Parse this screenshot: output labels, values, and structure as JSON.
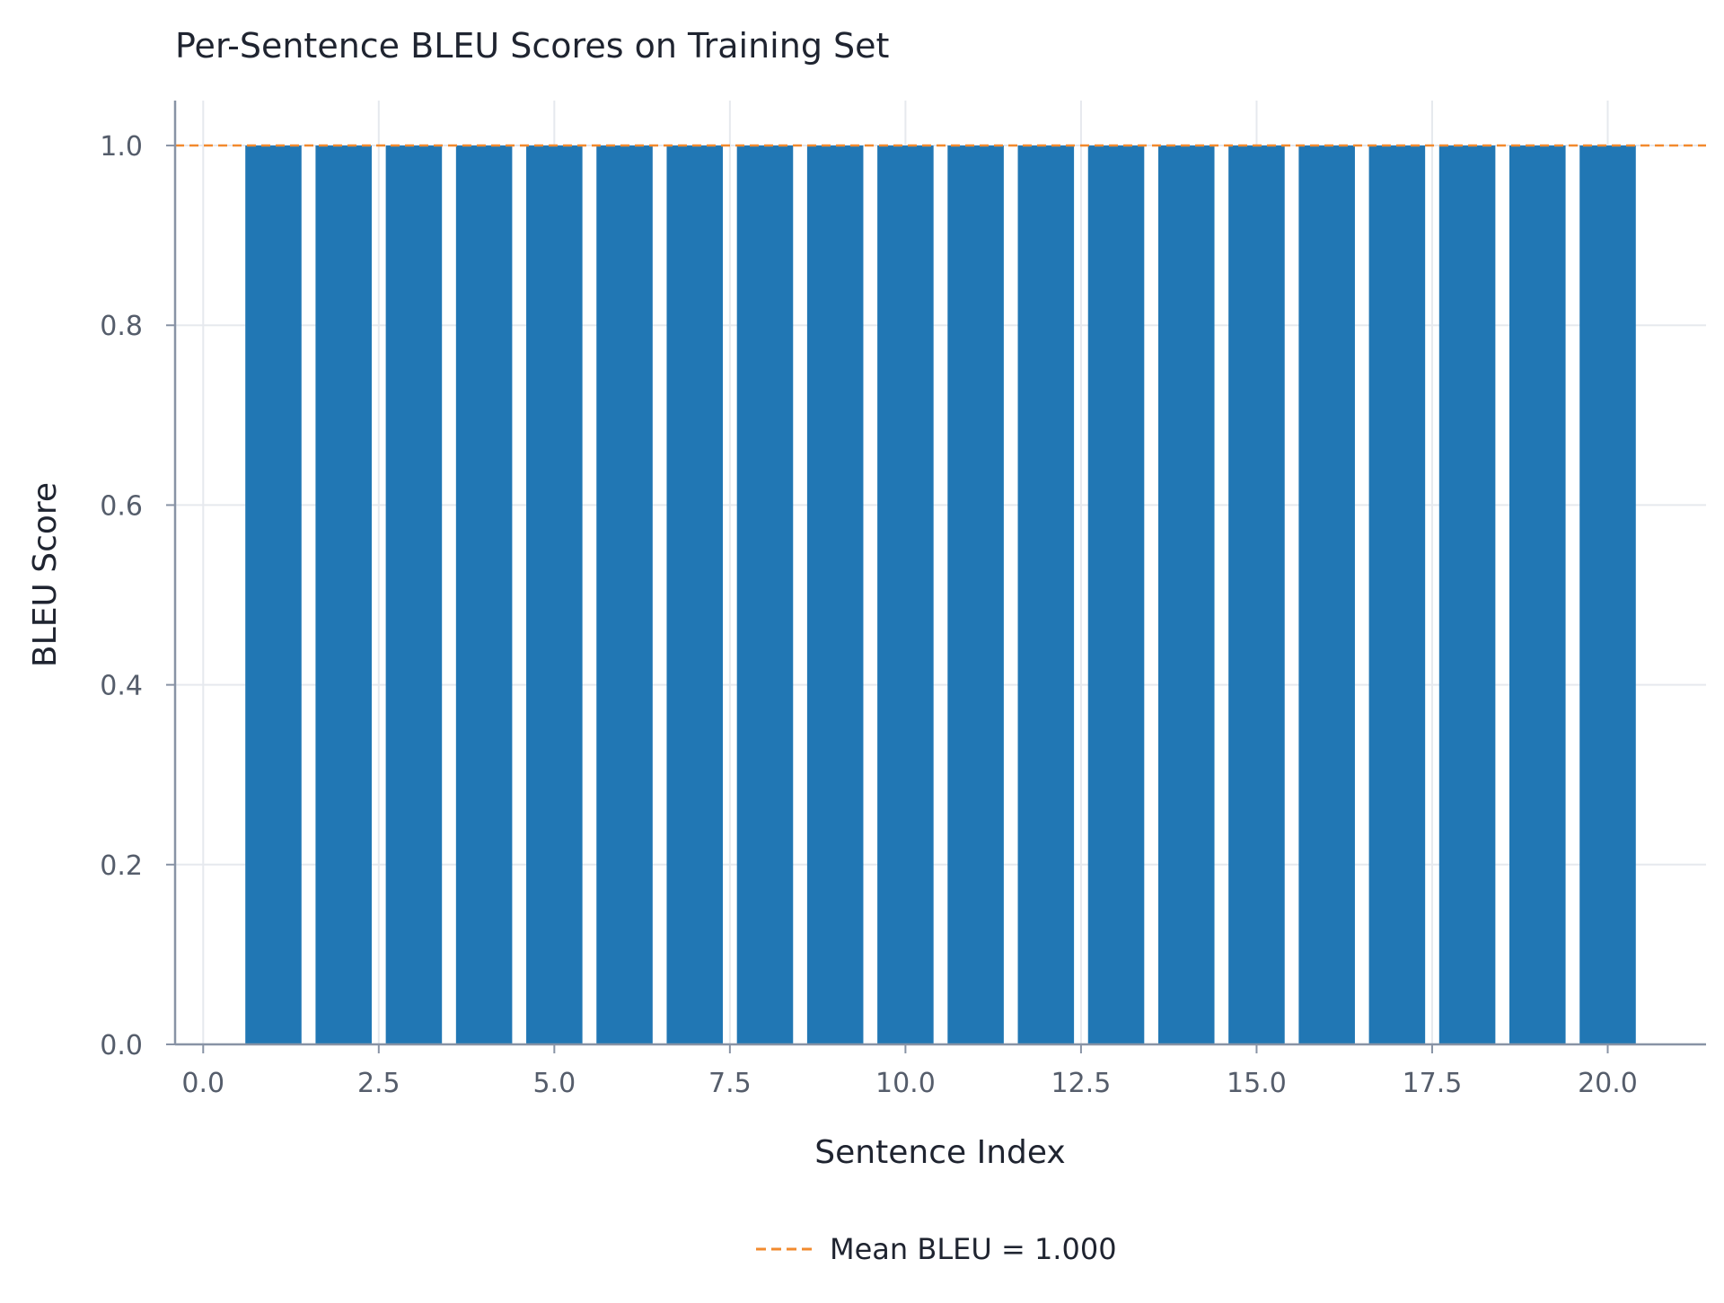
{
  "chart_data": {
    "type": "bar",
    "title": "Per-Sentence BLEU Scores on Training Set",
    "xlabel": "Sentence Index",
    "ylabel": "BLEU Score",
    "x": [
      1,
      2,
      3,
      4,
      5,
      6,
      7,
      8,
      9,
      10,
      11,
      12,
      13,
      14,
      15,
      16,
      17,
      18,
      19,
      20
    ],
    "values": [
      1.0,
      1.0,
      1.0,
      1.0,
      1.0,
      1.0,
      1.0,
      1.0,
      1.0,
      1.0,
      1.0,
      1.0,
      1.0,
      1.0,
      1.0,
      1.0,
      1.0,
      1.0,
      1.0,
      1.0
    ],
    "xlim": [
      -0.4,
      21.4
    ],
    "ylim": [
      0,
      1.05
    ],
    "x_ticks": [
      0.0,
      2.5,
      5.0,
      7.5,
      10.0,
      12.5,
      15.0,
      17.5,
      20.0
    ],
    "x_tick_labels": [
      "0.0",
      "2.5",
      "5.0",
      "7.5",
      "10.0",
      "12.5",
      "15.0",
      "17.5",
      "20.0"
    ],
    "y_ticks": [
      0.0,
      0.2,
      0.4,
      0.6,
      0.8,
      1.0
    ],
    "y_tick_labels": [
      "0.0",
      "0.2",
      "0.4",
      "0.6",
      "0.8",
      "1.0"
    ],
    "mean_line": {
      "value": 1.0,
      "label": "Mean BLEU = 1.000"
    },
    "grid": true,
    "legend_position": "bottom-center",
    "colors": {
      "bar": "#2177b4",
      "mean": "#f28a2e",
      "grid": "#e6e9ee",
      "axis": "#8893a5"
    }
  }
}
